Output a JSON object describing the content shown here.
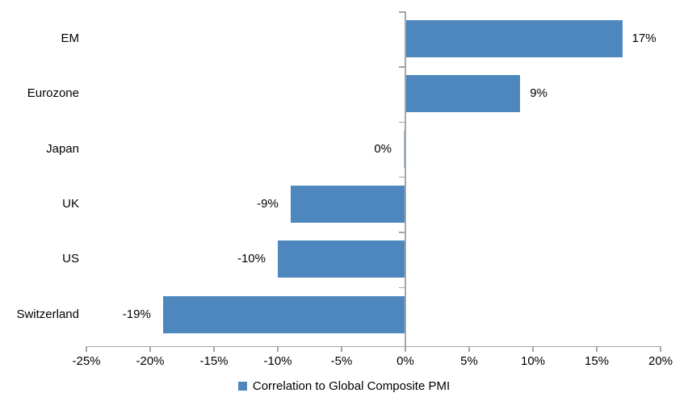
{
  "chart_data": {
    "type": "bar",
    "orientation": "horizontal",
    "title": "",
    "categories": [
      "EM",
      "Eurozone",
      "Japan",
      "UK",
      "US",
      "Switzerland"
    ],
    "values": [
      17,
      9,
      0,
      -9,
      -10,
      -19
    ],
    "data_labels": [
      "17%",
      "9%",
      "0%",
      "-9%",
      "-10%",
      "-19%"
    ],
    "series_name": "Correlation to Global Composite PMI",
    "xlabel": "",
    "ylabel": "",
    "xlim": [
      -25,
      20
    ],
    "xticks": [
      -25,
      -20,
      -15,
      -10,
      -5,
      0,
      5,
      10,
      15,
      20
    ],
    "xtick_labels": [
      "-25%",
      "-20%",
      "-15%",
      "-10%",
      "-5%",
      "0%",
      "5%",
      "10%",
      "15%",
      "20%"
    ],
    "grid": false,
    "legend_position": "bottom-center",
    "bar_color": "#4e87be",
    "axis_color": "#a6a6a6",
    "text_color": "#000000"
  },
  "legend": {
    "label": "Correlation to Global Composite PMI"
  }
}
